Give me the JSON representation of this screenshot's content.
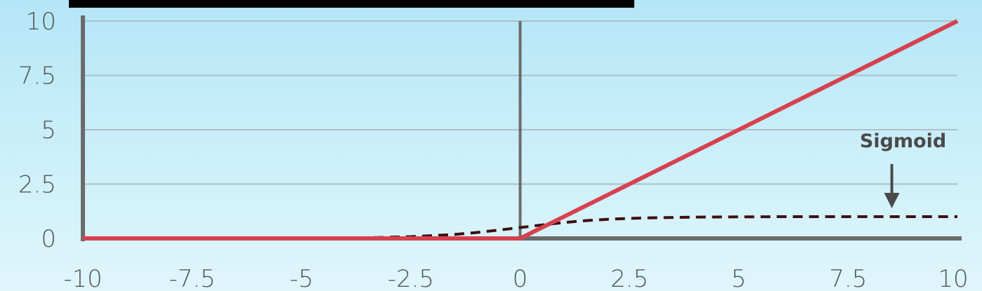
{
  "chart_data": {
    "type": "line",
    "x": [
      -10,
      -7.5,
      -5,
      -3.5,
      -2.5,
      -1.5,
      -1,
      -0.5,
      0,
      0.5,
      1,
      1.5,
      2,
      2.5,
      3,
      4,
      5,
      6,
      7.5,
      10
    ],
    "series": [
      {
        "name": "",
        "style": "solid",
        "values": [
          0,
          0,
          0,
          0,
          0,
          0,
          0,
          0,
          0,
          0.5,
          1,
          1.5,
          2,
          2.5,
          3,
          4,
          5,
          6,
          7.5,
          10
        ]
      },
      {
        "name": "Sigmoid",
        "style": "dashed",
        "values": [
          0,
          0,
          0.01,
          0.03,
          0.08,
          0.18,
          0.27,
          0.38,
          0.5,
          0.62,
          0.73,
          0.82,
          0.88,
          0.92,
          0.95,
          0.98,
          0.99,
          1.0,
          1.0,
          1.0
        ]
      }
    ],
    "x_ticks": [
      "-10",
      "-7.5",
      "-5",
      "-2.5",
      "0",
      "2.5",
      "5",
      "7.5",
      "10"
    ],
    "y_ticks": [
      "0",
      "2.5",
      "5",
      "7.5",
      "10"
    ],
    "xlim": [
      -10,
      10
    ],
    "ylim": [
      0,
      10
    ],
    "grid": true,
    "annotation": {
      "text": "Sigmoid",
      "x": 8.5,
      "y": 1.0
    },
    "colors": {
      "solid": "#d7414f",
      "dashed": "#3d0e12",
      "axis": "#6b6b6b",
      "grid": "#aebfc6",
      "title_bar": "#000000"
    }
  }
}
